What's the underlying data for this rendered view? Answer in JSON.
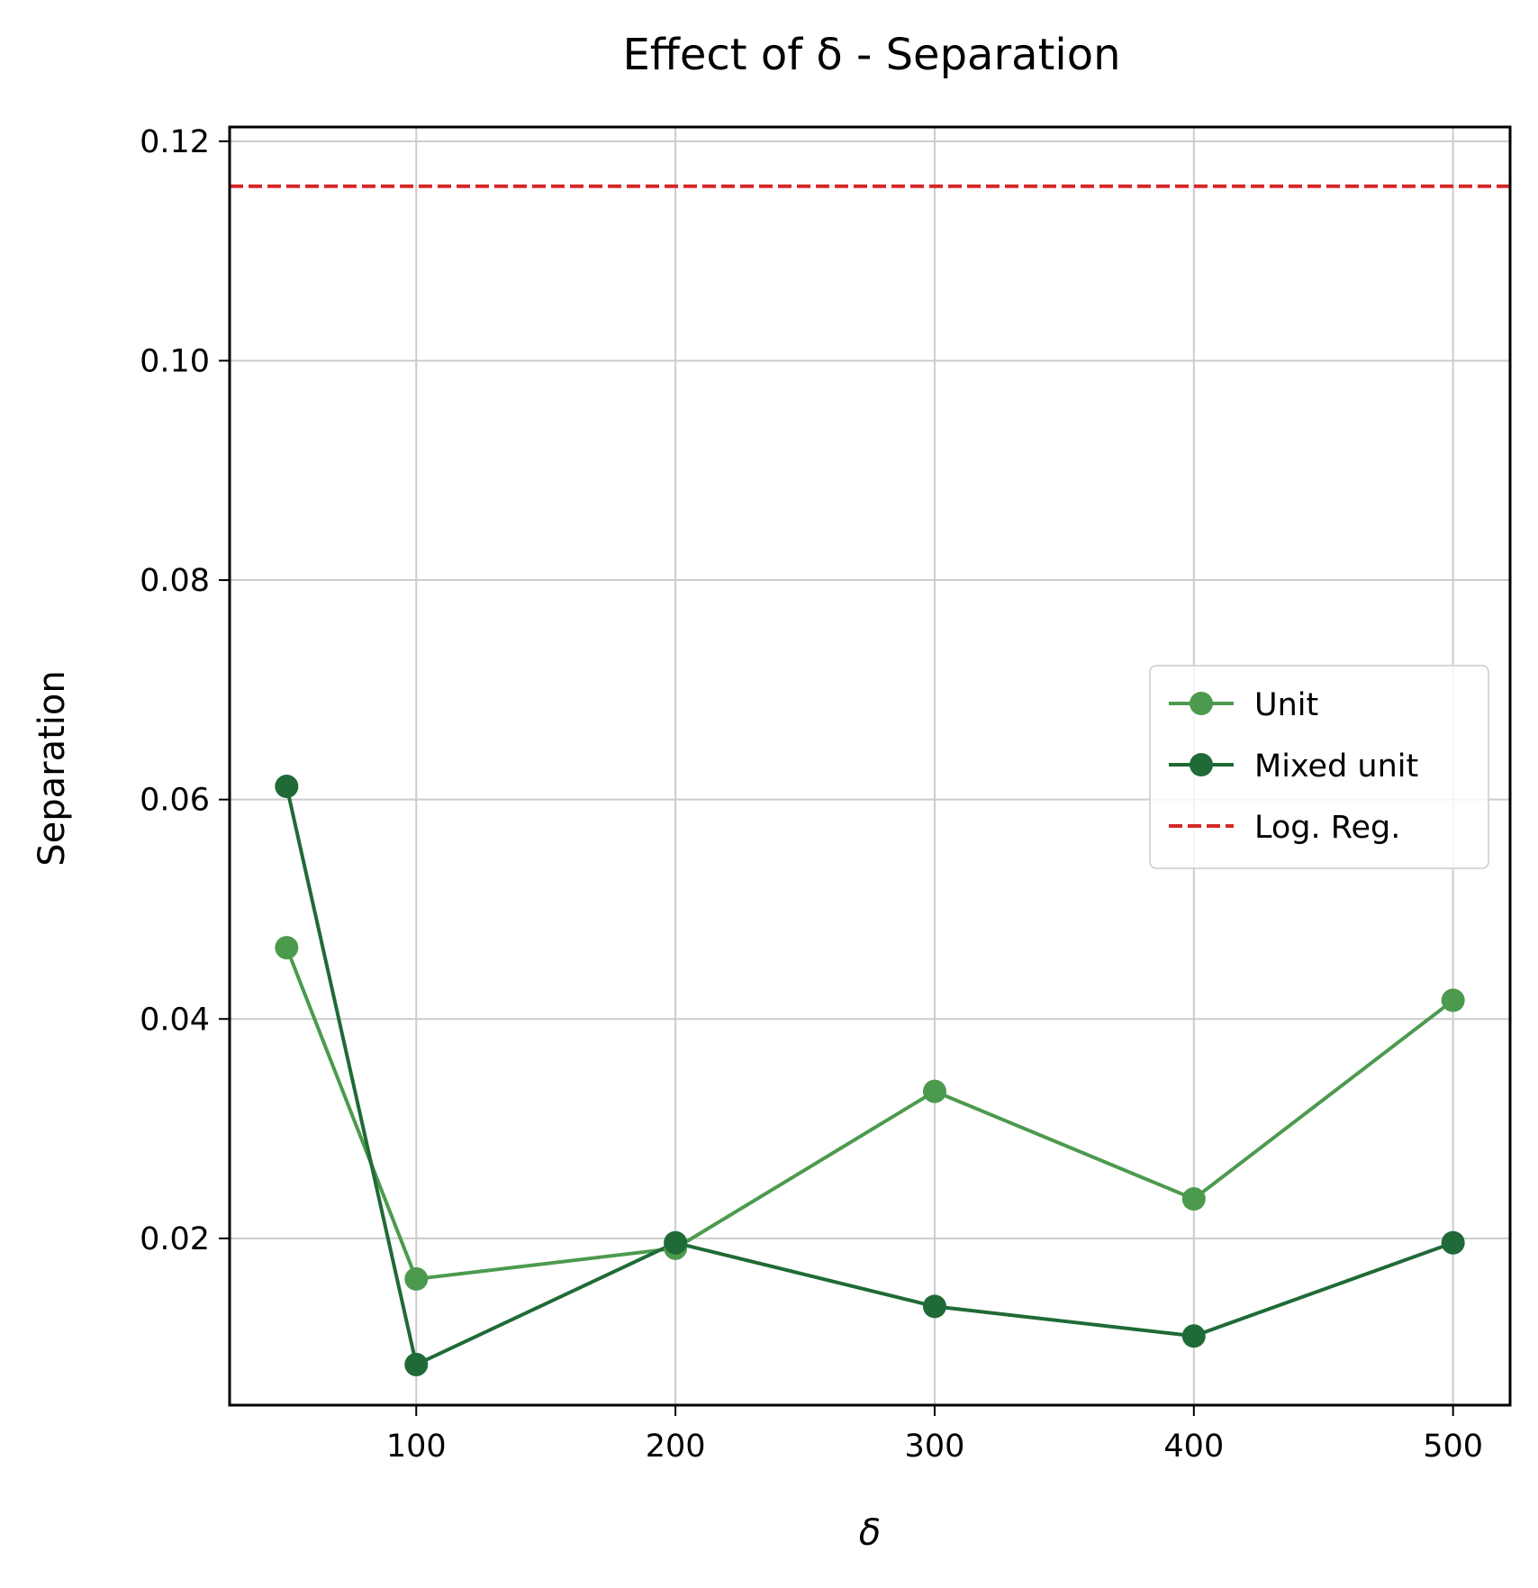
{
  "chart_data": {
    "type": "line",
    "title": "Effect of δ - Separation",
    "xlabel": "δ",
    "ylabel": "Separation",
    "xlim": [
      28,
      522
    ],
    "ylim": [
      0.0048,
      0.1213
    ],
    "xticks": [
      100,
      200,
      300,
      400,
      500
    ],
    "xtick_labels": [
      "100",
      "200",
      "300",
      "400",
      "500"
    ],
    "yticks": [
      0.02,
      0.04,
      0.06,
      0.08,
      0.1,
      0.12
    ],
    "ytick_labels": [
      "0.02",
      "0.04",
      "0.06",
      "0.08",
      "0.10",
      "0.12"
    ],
    "grid": true,
    "legend_position": "center-right",
    "x": [
      50,
      100,
      200,
      300,
      400,
      500
    ],
    "series": [
      {
        "name": "Unit",
        "values": [
          0.0465,
          0.0163,
          0.0191,
          0.0334,
          0.0236,
          0.0417
        ],
        "color": "#4c9a4e",
        "style": "solid",
        "marker": "circle"
      },
      {
        "name": "Mixed unit",
        "values": [
          0.0612,
          0.0085,
          0.0196,
          0.0138,
          0.0111,
          0.0196
        ],
        "color": "#1f6a36",
        "style": "solid",
        "marker": "circle"
      }
    ],
    "reference_lines": [
      {
        "name": "Log. Reg.",
        "y": 0.1159,
        "color": "#d62728",
        "style": "dashed"
      }
    ]
  }
}
